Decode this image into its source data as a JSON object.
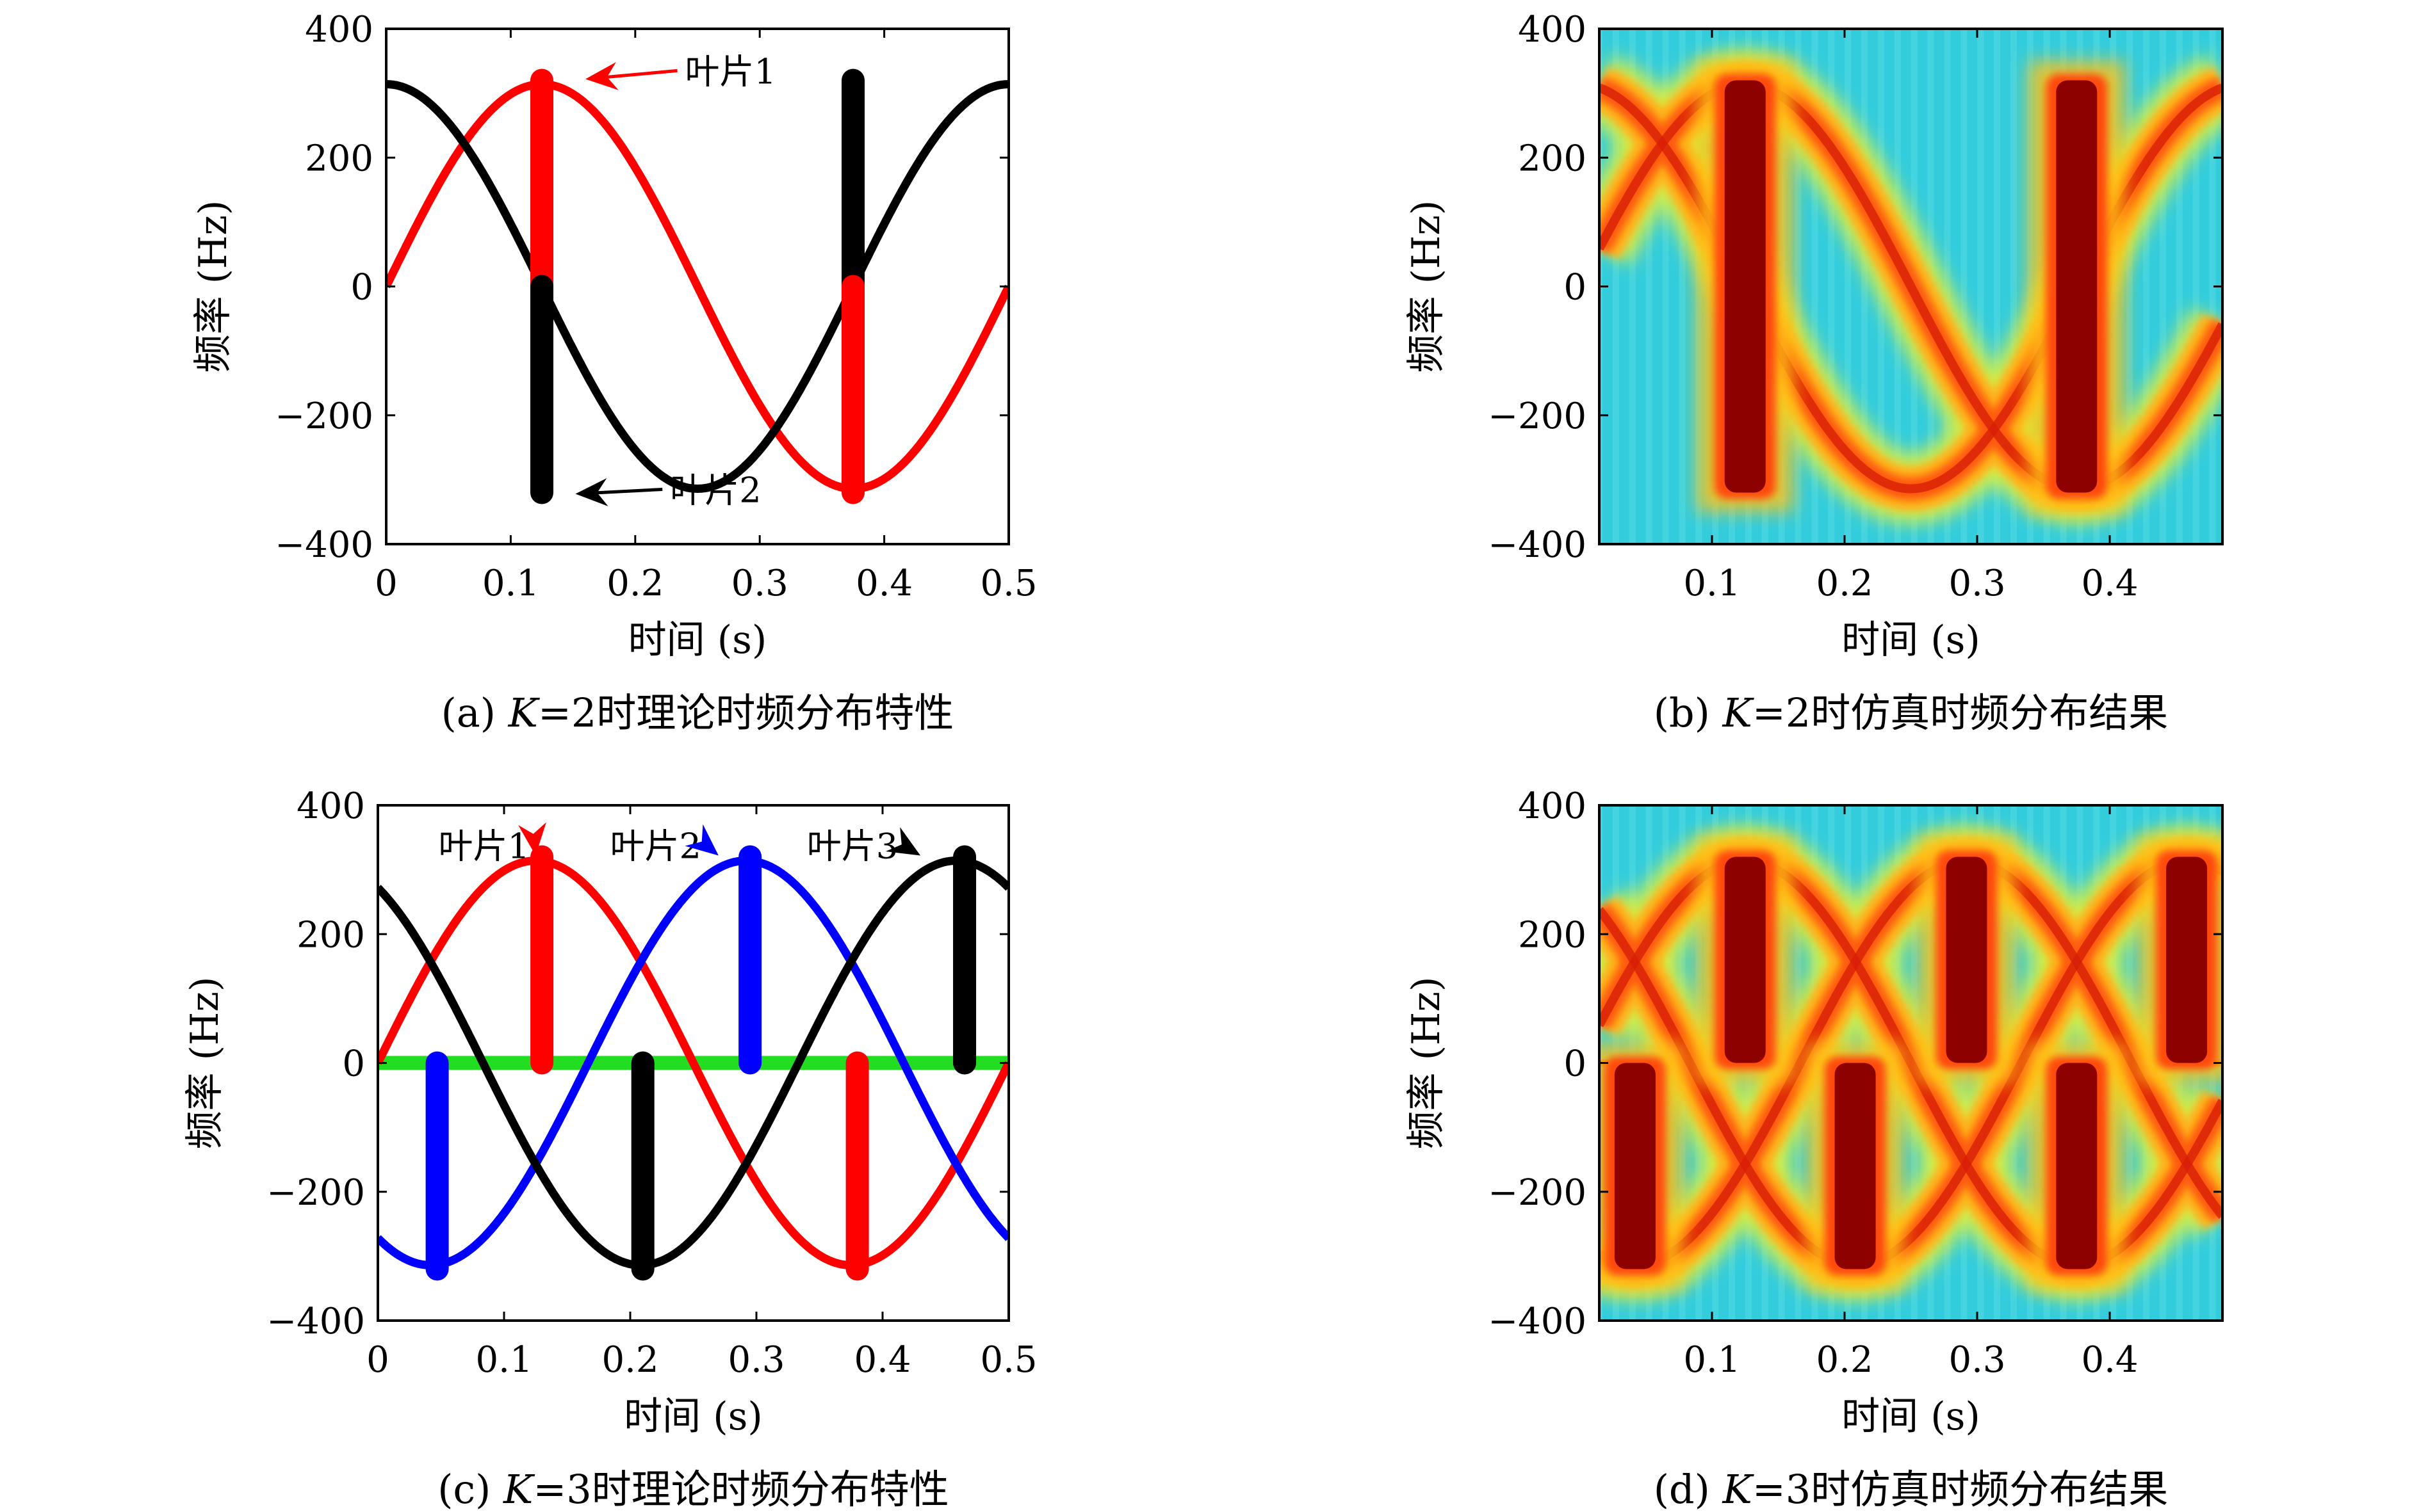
{
  "colors": {
    "red": "#ff0000",
    "black": "#000000",
    "blue": "#0000ff",
    "green": "#22dd22"
  },
  "chart_data": [
    {
      "id": "a",
      "type": "line",
      "caption_letter": "(a) ",
      "caption_italic": "K",
      "caption_rest": "=2时理论时频分布特性",
      "xlabel": "时间 (s)",
      "ylabel": "频率 (Hz)",
      "xlim": [
        0,
        0.5
      ],
      "ylim": [
        -400,
        400
      ],
      "xticks": [
        0,
        0.1,
        0.2,
        0.3,
        0.4,
        0.5
      ],
      "xticklabels": [
        "0",
        "0.1",
        "0.2",
        "0.3",
        "0.4",
        "0.5"
      ],
      "yticks": [
        -400,
        -200,
        0,
        200,
        400
      ],
      "yticklabels": [
        "−400",
        "−200",
        "0",
        "200",
        "400"
      ],
      "series": [
        {
          "color": "#ff0000",
          "amplitude": 314,
          "period": 0.5,
          "phase": 0
        },
        {
          "color": "#000000",
          "amplitude": 314,
          "period": 0.5,
          "phase": 0.5
        }
      ],
      "bars": [
        {
          "x": 0.125,
          "y0": 0,
          "y1": 320,
          "color": "#ff0000"
        },
        {
          "x": 0.125,
          "y0": -320,
          "y1": 0,
          "color": "#000000"
        },
        {
          "x": 0.375,
          "y0": 0,
          "y1": 320,
          "color": "#000000"
        },
        {
          "x": 0.375,
          "y0": -320,
          "y1": 0,
          "color": "#ff0000"
        }
      ],
      "annotations": [
        {
          "text": "叶片1",
          "color": "#ff0000",
          "tx": 0.24,
          "ty": 335,
          "ax": 0.16,
          "ay": 322
        },
        {
          "text": "叶片2",
          "color": "#000000",
          "tx": 0.228,
          "ty": -315,
          "ax": 0.152,
          "ay": -322
        }
      ]
    },
    {
      "id": "b",
      "type": "heatmap",
      "caption_letter": "(b) ",
      "caption_italic": "K",
      "caption_rest": "=2时仿真时频分布结果",
      "xlabel": "时间 (s)",
      "ylabel": "频率 (Hz)",
      "xlim": [
        0.015,
        0.485
      ],
      "ylim": [
        -400,
        400
      ],
      "xticks": [
        0.1,
        0.2,
        0.3,
        0.4
      ],
      "xticklabels": [
        "0.1",
        "0.2",
        "0.3",
        "0.4"
      ],
      "yticks": [
        -400,
        -200,
        0,
        200,
        400
      ],
      "yticklabels": [
        "−400",
        "−200",
        "0",
        "200",
        "400"
      ],
      "curves": [
        {
          "amplitude": 314,
          "period": 0.5,
          "phase": 0
        },
        {
          "amplitude": 314,
          "period": 0.5,
          "phase": 0.5
        }
      ],
      "bands": [
        {
          "x": 0.125,
          "y0": -320,
          "y1": 320
        },
        {
          "x": 0.375,
          "y0": -320,
          "y1": 320
        }
      ],
      "zero_line": false
    },
    {
      "id": "c",
      "type": "line",
      "caption_letter": "(c) ",
      "caption_italic": "K",
      "caption_rest": "=3时理论时频分布特性",
      "xlabel": "时间 (s)",
      "ylabel": "频率 (Hz)",
      "xlim": [
        0,
        0.5
      ],
      "ylim": [
        -400,
        400
      ],
      "xticks": [
        0,
        0.1,
        0.2,
        0.3,
        0.4,
        0.5
      ],
      "xticklabels": [
        "0",
        "0.1",
        "0.2",
        "0.3",
        "0.4",
        "0.5"
      ],
      "yticks": [
        -400,
        -200,
        0,
        200,
        400
      ],
      "yticklabels": [
        "−400",
        "−200",
        "0",
        "200",
        "400"
      ],
      "series": [
        {
          "color": "#ff0000",
          "amplitude": 314,
          "period": 0.5,
          "phase": 0
        },
        {
          "color": "#0000ff",
          "amplitude": 314,
          "period": 0.5,
          "phase": -0.6667
        },
        {
          "color": "#000000",
          "amplitude": 314,
          "period": 0.5,
          "phase": -1.3333
        }
      ],
      "hline": {
        "y": 0,
        "color": "#22dd22"
      },
      "bars": [
        {
          "x": 0.13,
          "y0": 0,
          "y1": 320,
          "color": "#ff0000"
        },
        {
          "x": 0.047,
          "y0": -320,
          "y1": 0,
          "color": "#0000ff"
        },
        {
          "x": 0.21,
          "y0": -320,
          "y1": 0,
          "color": "#000000"
        },
        {
          "x": 0.295,
          "y0": 0,
          "y1": 320,
          "color": "#0000ff"
        },
        {
          "x": 0.38,
          "y0": -320,
          "y1": 0,
          "color": "#ff0000"
        },
        {
          "x": 0.465,
          "y0": 0,
          "y1": 320,
          "color": "#000000"
        }
      ],
      "annotations": [
        {
          "text": "叶片1",
          "color": "#ff0000",
          "tx": 0.048,
          "ty": 338,
          "ax": 0.125,
          "ay": 322
        },
        {
          "text": "叶片2",
          "color": "#0000ff",
          "tx": 0.184,
          "ty": 338,
          "ax": 0.27,
          "ay": 322
        },
        {
          "text": "叶片3",
          "color": "#000000",
          "tx": 0.34,
          "ty": 338,
          "ax": 0.43,
          "ay": 322
        }
      ]
    },
    {
      "id": "d",
      "type": "heatmap",
      "caption_letter": "(d) ",
      "caption_italic": "K",
      "caption_rest": "=3时仿真时频分布结果",
      "xlabel": "时间 (s)",
      "ylabel": "频率 (Hz)",
      "xlim": [
        0.015,
        0.485
      ],
      "ylim": [
        -400,
        400
      ],
      "xticks": [
        0.1,
        0.2,
        0.3,
        0.4
      ],
      "xticklabels": [
        "0.1",
        "0.2",
        "0.3",
        "0.4"
      ],
      "yticks": [
        -400,
        -200,
        0,
        200,
        400
      ],
      "yticklabels": [
        "−400",
        "−200",
        "0",
        "200",
        "400"
      ],
      "curves": [
        {
          "amplitude": 314,
          "period": 0.5,
          "phase": 0
        },
        {
          "amplitude": 314,
          "period": 0.5,
          "phase": -0.6667
        },
        {
          "amplitude": 314,
          "period": 0.5,
          "phase": -1.3333
        }
      ],
      "bands": [
        {
          "x": 0.042,
          "y0": -320,
          "y1": 0
        },
        {
          "x": 0.125,
          "y0": 0,
          "y1": 320
        },
        {
          "x": 0.208,
          "y0": -320,
          "y1": 0
        },
        {
          "x": 0.292,
          "y0": 0,
          "y1": 320
        },
        {
          "x": 0.375,
          "y0": -320,
          "y1": 0
        },
        {
          "x": 0.458,
          "y0": 0,
          "y1": 320
        }
      ],
      "zero_line": true
    }
  ]
}
